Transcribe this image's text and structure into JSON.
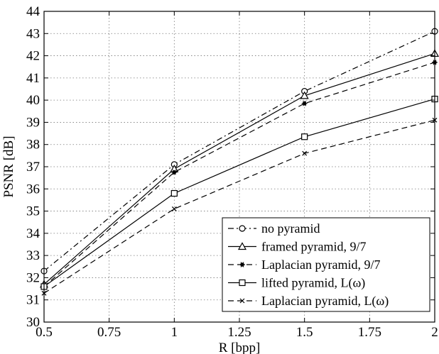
{
  "chart_data": {
    "type": "line",
    "xlabel": "R [bpp]",
    "ylabel": "PSNR [dB]",
    "xlim": [
      0.5,
      2
    ],
    "ylim": [
      30,
      44
    ],
    "x_ticks": [
      "0.5",
      "0.75",
      "1",
      "1.25",
      "1.5",
      "1.75",
      "2"
    ],
    "y_ticks": [
      "30",
      "31",
      "32",
      "33",
      "34",
      "35",
      "36",
      "37",
      "38",
      "39",
      "40",
      "41",
      "42",
      "43",
      "44"
    ],
    "grid": true,
    "legend_position": "bottom-right",
    "x": [
      0.5,
      1,
      1.5,
      2
    ],
    "series": [
      {
        "name": "no pyramid",
        "values": [
          32.3,
          37.1,
          40.4,
          43.1
        ],
        "line": "dash-dot",
        "marker": "circle"
      },
      {
        "name": "framed pyramid, 9/7",
        "values": [
          31.7,
          36.9,
          40.2,
          42.1
        ],
        "line": "solid",
        "marker": "triangle"
      },
      {
        "name": "Laplacian pyramid, 9/7",
        "values": [
          31.6,
          36.75,
          39.85,
          41.7
        ],
        "line": "dashed",
        "marker": "star"
      },
      {
        "name": "lifted pyramid, L(ω)",
        "values": [
          31.6,
          35.8,
          38.35,
          40.05
        ],
        "line": "solid",
        "marker": "square"
      },
      {
        "name": "Laplacian pyramid, L(ω)",
        "values": [
          31.3,
          35.1,
          37.6,
          39.1
        ],
        "line": "dashed",
        "marker": "x"
      }
    ]
  }
}
